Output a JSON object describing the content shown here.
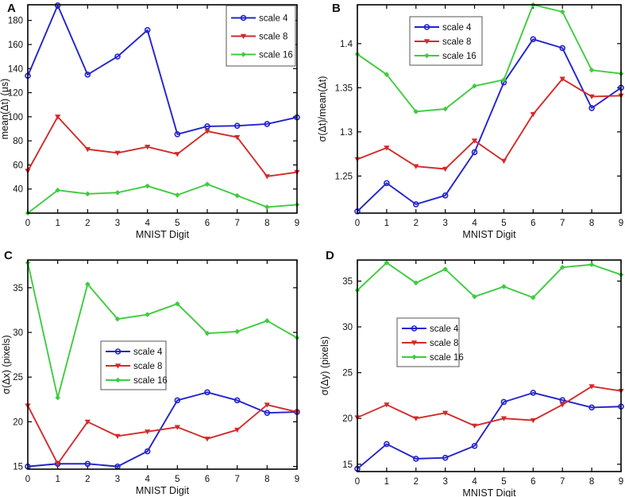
{
  "figure": {
    "background": "#ffffff",
    "axis_color": "#000000",
    "legend_border_color": "#555555",
    "x_axis_label": "MNIST Digit",
    "x_categories": [
      "0",
      "1",
      "2",
      "3",
      "4",
      "5",
      "6",
      "7",
      "8",
      "9"
    ]
  },
  "series_colors": {
    "scale4": "#2323cd",
    "scale8": "#d42a2a",
    "scale16": "#3ecc3e"
  },
  "chart_data": [
    {
      "type": "line",
      "panel": "A",
      "xlabel": "MNIST Digit",
      "ylabel": "mean(Δt) (μs)",
      "x": [
        0,
        1,
        2,
        3,
        4,
        5,
        6,
        7,
        8,
        9
      ],
      "ylim": [
        20,
        193
      ],
      "yticks": [
        40,
        60,
        80,
        100,
        120,
        140,
        160,
        180
      ],
      "ytick_labels": [
        "40",
        "60",
        "80",
        "100",
        "120",
        "140",
        "160",
        "180"
      ],
      "grid": false,
      "legend_position": "top-right-inside",
      "series": [
        {
          "name": "scale 4",
          "marker": "circle",
          "color": "#2323cd",
          "values": [
            134,
            192.5,
            135,
            150,
            172,
            85.5,
            92,
            92.5,
            94,
            99.5
          ]
        },
        {
          "name": "scale 8",
          "marker": "triangle",
          "color": "#d42a2a",
          "values": [
            55,
            100,
            73,
            70,
            75,
            69,
            88,
            83,
            50.5,
            54
          ]
        },
        {
          "name": "scale 16",
          "marker": "diamond",
          "color": "#3ecc3e",
          "values": [
            20,
            39,
            36,
            37,
            42.5,
            35,
            44,
            34.5,
            25,
            27
          ]
        }
      ]
    },
    {
      "type": "line",
      "panel": "B",
      "xlabel": "MNIST Digit",
      "ylabel": "σ(Δt)/mean(Δt)",
      "x": [
        0,
        1,
        2,
        3,
        4,
        5,
        6,
        7,
        8,
        9
      ],
      "ylim": [
        1.208,
        1.444
      ],
      "yticks": [
        1.25,
        1.3,
        1.35,
        1.4
      ],
      "ytick_labels": [
        "1.25",
        "1.3",
        "1.35",
        "1.4"
      ],
      "grid": false,
      "legend_position": "upper-left-inside",
      "series": [
        {
          "name": "scale 4",
          "marker": "circle",
          "color": "#2323cd",
          "values": [
            1.21,
            1.242,
            1.218,
            1.228,
            1.277,
            1.356,
            1.405,
            1.395,
            1.327,
            1.35
          ]
        },
        {
          "name": "scale 8",
          "marker": "triangle",
          "color": "#d42a2a",
          "values": [
            1.269,
            1.282,
            1.261,
            1.258,
            1.29,
            1.267,
            1.32,
            1.36,
            1.34,
            1.341
          ]
        },
        {
          "name": "scale 16",
          "marker": "diamond",
          "color": "#3ecc3e",
          "values": [
            1.388,
            1.365,
            1.323,
            1.326,
            1.352,
            1.359,
            1.444,
            1.436,
            1.37,
            1.366
          ]
        }
      ]
    },
    {
      "type": "line",
      "panel": "C",
      "xlabel": "MNIST Digit",
      "ylabel": "σ(Δx) (pixels)",
      "x": [
        0,
        1,
        2,
        3,
        4,
        5,
        6,
        7,
        8,
        9
      ],
      "ylim": [
        14.7,
        38.1
      ],
      "yticks": [
        15,
        20,
        25,
        30,
        35
      ],
      "ytick_labels": [
        "15",
        "20",
        "25",
        "30",
        "35"
      ],
      "grid": false,
      "legend_position": "middle-left-inside",
      "series": [
        {
          "name": "scale 4",
          "marker": "circle",
          "color": "#2323cd",
          "values": [
            15.0,
            15.3,
            15.3,
            15.0,
            16.7,
            22.4,
            23.3,
            22.4,
            21.0,
            21.1
          ]
        },
        {
          "name": "scale 8",
          "marker": "triangle",
          "color": "#d42a2a",
          "values": [
            21.8,
            15.3,
            20.0,
            18.4,
            18.9,
            19.4,
            18.1,
            19.1,
            21.9,
            21.1
          ]
        },
        {
          "name": "scale 16",
          "marker": "diamond",
          "color": "#3ecc3e",
          "values": [
            37.8,
            22.7,
            35.4,
            31.5,
            32.0,
            33.2,
            29.9,
            30.1,
            31.3,
            29.4
          ]
        }
      ]
    },
    {
      "type": "line",
      "panel": "D",
      "xlabel": "MNIST Digit",
      "ylabel": "σ(Δy) (pixels)",
      "x": [
        0,
        1,
        2,
        3,
        4,
        5,
        6,
        7,
        8,
        9
      ],
      "ylim": [
        14.2,
        37.3
      ],
      "yticks": [
        15,
        20,
        25,
        30,
        35
      ],
      "ytick_labels": [
        "15",
        "20",
        "25",
        "30",
        "35"
      ],
      "grid": false,
      "legend_position": "middle-left-inside",
      "series": [
        {
          "name": "scale 4",
          "marker": "circle",
          "color": "#2323cd",
          "values": [
            14.5,
            17.2,
            15.6,
            15.7,
            17.0,
            21.8,
            22.8,
            22.0,
            21.2,
            21.3
          ]
        },
        {
          "name": "scale 8",
          "marker": "triangle",
          "color": "#d42a2a",
          "values": [
            20.1,
            21.5,
            20.0,
            20.6,
            19.2,
            20.0,
            19.8,
            21.5,
            23.5,
            23.0
          ]
        },
        {
          "name": "scale 16",
          "marker": "diamond",
          "color": "#3ecc3e",
          "values": [
            34.0,
            37.0,
            34.8,
            36.3,
            33.3,
            34.4,
            33.2,
            36.5,
            36.8,
            35.7
          ]
        }
      ]
    }
  ]
}
